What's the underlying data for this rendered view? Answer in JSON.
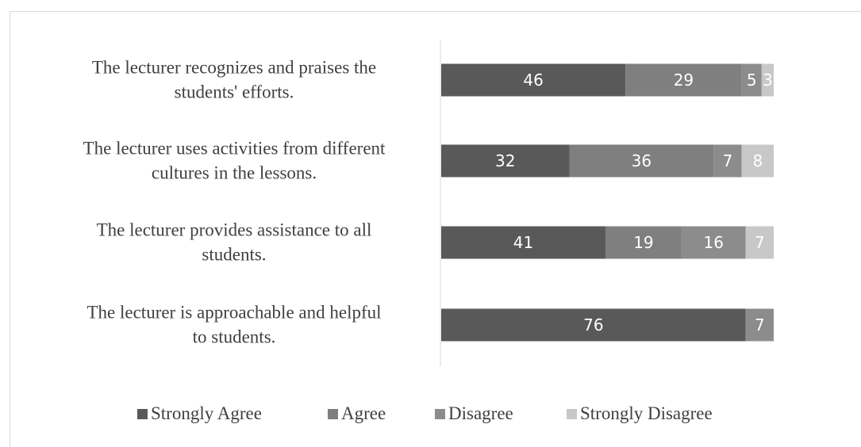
{
  "chart_data": {
    "type": "bar",
    "orientation": "horizontal",
    "stacked": true,
    "title": "",
    "xlabel": "",
    "ylabel": "",
    "grid": false,
    "legend_position": "bottom",
    "xlim": [
      0,
      83
    ],
    "categories": [
      [
        "The lecturer recognizes and praises the",
        "students' efforts."
      ],
      [
        "The lecturer uses activities from different",
        "cultures in the lessons."
      ],
      [
        "The lecturer provides assistance to all",
        "students."
      ],
      [
        "The lecturer is approachable and helpful",
        "to students."
      ]
    ],
    "series": [
      {
        "name": "Strongly Agree",
        "color": "#595959",
        "values": [
          46,
          32,
          41,
          76
        ]
      },
      {
        "name": "Agree",
        "color": "#7f7f7f",
        "values": [
          29,
          36,
          19,
          0
        ]
      },
      {
        "name": "Disagree",
        "color": "#8c8c8c",
        "values": [
          5,
          7,
          16,
          7
        ]
      },
      {
        "name": "Strongly Disagree",
        "color": "#c8c8c8",
        "values": [
          3,
          8,
          7,
          0
        ]
      }
    ],
    "value_labels": [
      [
        "46",
        "29",
        "5",
        "3"
      ],
      [
        "32",
        "36",
        "7",
        "8"
      ],
      [
        "41",
        "19",
        "16",
        "7"
      ],
      [
        "76",
        "",
        "7",
        ""
      ]
    ]
  }
}
